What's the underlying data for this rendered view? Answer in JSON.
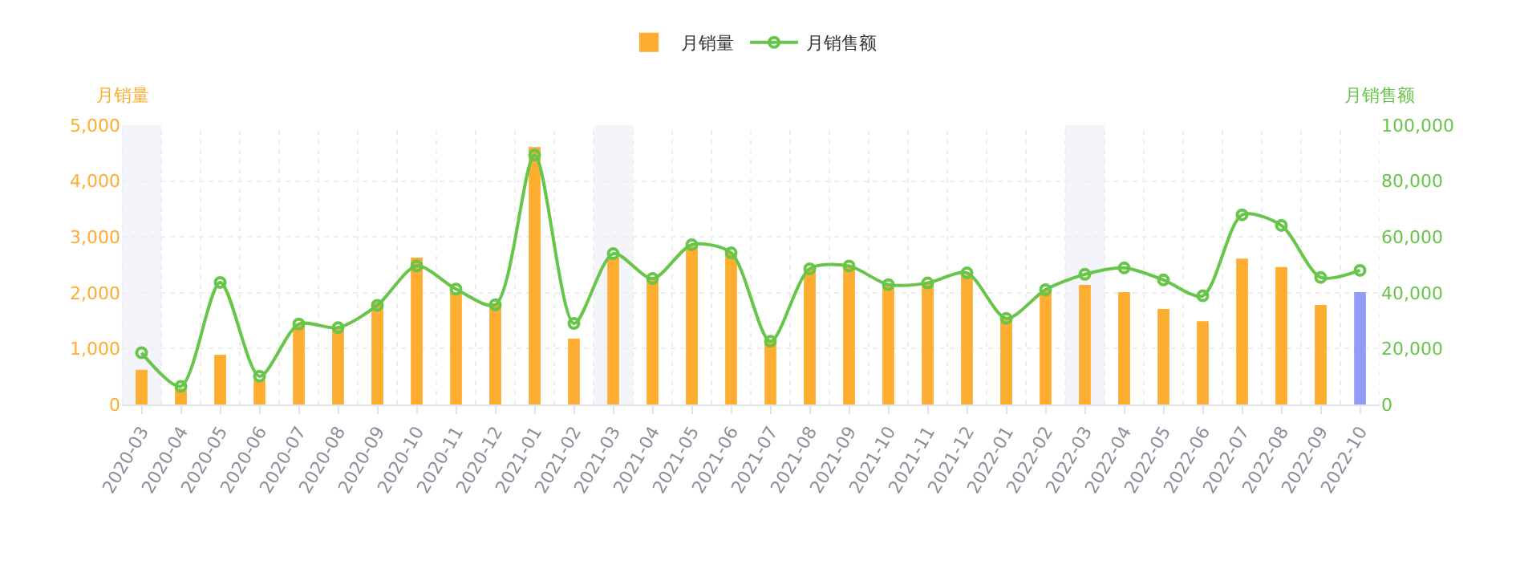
{
  "chart_data": {
    "type": "bar",
    "categories": [
      "2020-03",
      "2020-04",
      "2020-05",
      "2020-06",
      "2020-07",
      "2020-08",
      "2020-09",
      "2020-10",
      "2020-11",
      "2020-12",
      "2021-01",
      "2021-02",
      "2021-03",
      "2021-04",
      "2021-05",
      "2021-06",
      "2021-07",
      "2021-08",
      "2021-09",
      "2021-10",
      "2021-11",
      "2021-12",
      "2022-01",
      "2022-02",
      "2022-03",
      "2022-04",
      "2022-05",
      "2022-06",
      "2022-07",
      "2022-08",
      "2022-09",
      "2022-10"
    ],
    "series": [
      {
        "name": "月销量",
        "color": "#fdad30",
        "colors": [
          "#fdad30",
          "#fdad30",
          "#fdad30",
          "#fdad30",
          "#fdad30",
          "#fdad30",
          "#fdad30",
          "#fdad30",
          "#fdad30",
          "#fdad30",
          "#fdad30",
          "#fdad30",
          "#fdad30",
          "#fdad30",
          "#fdad30",
          "#fdad30",
          "#fdad30",
          "#fdad30",
          "#fdad30",
          "#fdad30",
          "#fdad30",
          "#fdad30",
          "#fdad30",
          "#fdad30",
          "#fdad30",
          "#fdad30",
          "#fdad30",
          "#fdad30",
          "#fdad30",
          "#fdad30",
          "#fdad30",
          "#929cf7"
        ],
        "values": [
          620,
          290,
          890,
          440,
          1440,
          1370,
          1840,
          2630,
          2010,
          1810,
          4610,
          1180,
          2630,
          2260,
          2830,
          2720,
          1150,
          2440,
          2480,
          2140,
          2160,
          2320,
          1540,
          2050,
          2140,
          2010,
          1710,
          1490,
          2610,
          2460,
          1780,
          2010
        ]
      },
      {
        "name": "月销售额",
        "type": "line",
        "axis": "y2",
        "color": "#67c549",
        "marker": "circle",
        "values": [
          18500,
          6500,
          43700,
          10100,
          28800,
          27500,
          35500,
          49600,
          41300,
          35700,
          89300,
          29000,
          54000,
          45100,
          57200,
          54300,
          22600,
          48600,
          49600,
          42900,
          43500,
          47100,
          30800,
          41100,
          46600,
          48900,
          44600,
          38900,
          67900,
          64100,
          45500,
          48000
        ]
      }
    ],
    "ylabel": "月销量",
    "y2label": "月销售额",
    "ylim": [
      0,
      5000
    ],
    "yticks": [
      0,
      {
        "value": 1000,
        "label": "1,000"
      },
      {
        "value": 2000,
        "label": "2,000"
      },
      {
        "value": 3000,
        "label": "3,000"
      },
      {
        "value": 4000,
        "label": "4,000"
      },
      {
        "value": 5000,
        "label": "5,000"
      }
    ],
    "y2lim": [
      0,
      100000
    ],
    "y2ticks": [
      0,
      {
        "value": 20000,
        "label": "20,000"
      },
      {
        "value": 40000,
        "label": "40,000"
      },
      {
        "value": 60000,
        "label": "60,000"
      },
      {
        "value": 80000,
        "label": "80,000"
      },
      {
        "value": 100000,
        "label": "100,000"
      }
    ],
    "bands": [
      {
        "axis": "x",
        "from": "2020-03",
        "to": "2020-03",
        "color": "#f3f5fa"
      },
      {
        "axis": "x",
        "from": "2021-03",
        "to": "2021-03",
        "color": "#f3f5fa"
      },
      {
        "axis": "x",
        "from": "2022-03",
        "to": "2022-03",
        "color": "#f3f5fa"
      }
    ],
    "grid": true,
    "legend": "top"
  }
}
